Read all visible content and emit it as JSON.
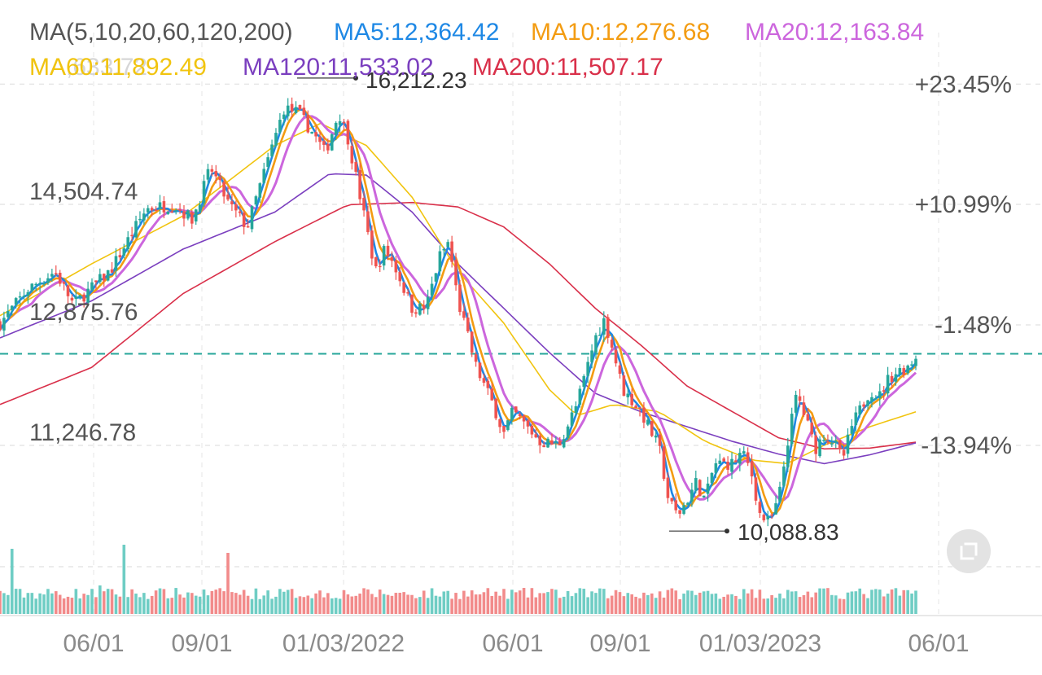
{
  "chart_data": {
    "type": "candlestick",
    "title": "",
    "legend_title": "MA(5,10,20,60,120,200)",
    "moving_averages": [
      {
        "name": "MA5",
        "label": "MA5:12,364.42",
        "value": 12364.42,
        "color": "#1e88e5"
      },
      {
        "name": "MA10",
        "label": "MA10:12,276.68",
        "value": 12276.68,
        "color": "#f39c12"
      },
      {
        "name": "MA20",
        "label": "MA20:12,163.84",
        "value": 12163.84,
        "color": "#cc66dd"
      },
      {
        "name": "MA60",
        "label": "MA60:11,892.49",
        "value": 11892.49,
        "color": "#f1c40f"
      },
      {
        "name": "MA120",
        "label": "MA120:11,533.02",
        "value": 11533.02,
        "color": "#7b3fbf"
      },
      {
        "name": "MA200",
        "label": "MA200:11,507.17",
        "value": 11507.17,
        "color": "#d9304a"
      }
    ],
    "overlay_glitch_text": "MA,633.72",
    "y_ticks": [
      {
        "value": 14504.74,
        "label": "14,504.74"
      },
      {
        "value": 12875.76,
        "label": "12,875.76"
      },
      {
        "value": 11246.78,
        "label": "11,246.78"
      }
    ],
    "pct_ticks": [
      {
        "value": 16130,
        "label": "+23.45%"
      },
      {
        "value": 14504.74,
        "label": "+10.99%"
      },
      {
        "value": 12875.76,
        "label": "-1.48%"
      },
      {
        "value": 11246.78,
        "label": "-13.94%"
      }
    ],
    "x_ticks": [
      "06/01",
      "09/01",
      "01/03/2022",
      "06/01",
      "09/01",
      "01/03/2023",
      "06/01"
    ],
    "high_marker": {
      "label": "16,212.23",
      "value": 16212.23
    },
    "low_marker": {
      "label": "10,088.83",
      "value": 10088.83
    },
    "current_price_line": 12485,
    "up_color": "#26a69a",
    "down_color": "#ef5350",
    "series_ma": {
      "MA200": [
        [
          0,
          11800
        ],
        [
          0.1,
          12300
        ],
        [
          0.2,
          13300
        ],
        [
          0.3,
          14000
        ],
        [
          0.38,
          14500
        ],
        [
          0.45,
          14530
        ],
        [
          0.5,
          14470
        ],
        [
          0.55,
          14200
        ],
        [
          0.6,
          13700
        ],
        [
          0.65,
          13100
        ],
        [
          0.7,
          12600
        ],
        [
          0.75,
          12050
        ],
        [
          0.8,
          11700
        ],
        [
          0.85,
          11350
        ],
        [
          0.9,
          11200
        ],
        [
          0.95,
          11210
        ],
        [
          1.0,
          11290
        ]
      ],
      "MA120": [
        [
          0,
          12700
        ],
        [
          0.1,
          13200
        ],
        [
          0.2,
          13900
        ],
        [
          0.3,
          14400
        ],
        [
          0.36,
          14920
        ],
        [
          0.4,
          14900
        ],
        [
          0.45,
          14400
        ],
        [
          0.5,
          13700
        ],
        [
          0.55,
          13100
        ],
        [
          0.6,
          12500
        ],
        [
          0.65,
          11950
        ],
        [
          0.7,
          11700
        ],
        [
          0.75,
          11500
        ],
        [
          0.8,
          11300
        ],
        [
          0.85,
          11130
        ],
        [
          0.9,
          11000
        ],
        [
          0.95,
          11120
        ],
        [
          1.0,
          11280
        ]
      ],
      "MA60": [
        [
          0,
          13000
        ],
        [
          0.1,
          13700
        ],
        [
          0.2,
          14350
        ],
        [
          0.3,
          15300
        ],
        [
          0.35,
          15600
        ],
        [
          0.4,
          15300
        ],
        [
          0.45,
          14600
        ],
        [
          0.5,
          13600
        ],
        [
          0.55,
          12900
        ],
        [
          0.6,
          12000
        ],
        [
          0.63,
          11650
        ],
        [
          0.67,
          11800
        ],
        [
          0.72,
          11700
        ],
        [
          0.77,
          11300
        ],
        [
          0.82,
          11050
        ],
        [
          0.86,
          11000
        ],
        [
          0.9,
          11250
        ],
        [
          0.95,
          11500
        ],
        [
          1.0,
          11700
        ]
      ]
    },
    "close_path": [
      [
        0,
        12900
      ],
      [
        0.03,
        13350
      ],
      [
        0.06,
        13600
      ],
      [
        0.08,
        13150
      ],
      [
        0.12,
        13600
      ],
      [
        0.16,
        14450
      ],
      [
        0.19,
        14500
      ],
      [
        0.21,
        14300
      ],
      [
        0.23,
        15000
      ],
      [
        0.25,
        14500
      ],
      [
        0.27,
        14200
      ],
      [
        0.29,
        15000
      ],
      [
        0.31,
        15800
      ],
      [
        0.325,
        15750
      ],
      [
        0.34,
        15500
      ],
      [
        0.355,
        15200
      ],
      [
        0.37,
        15750
      ],
      [
        0.38,
        15400
      ],
      [
        0.39,
        14800
      ],
      [
        0.4,
        14200
      ],
      [
        0.41,
        13600
      ],
      [
        0.42,
        13900
      ],
      [
        0.43,
        13700
      ],
      [
        0.45,
        13100
      ],
      [
        0.465,
        13100
      ],
      [
        0.48,
        13800
      ],
      [
        0.49,
        14000
      ],
      [
        0.5,
        13200
      ],
      [
        0.52,
        12300
      ],
      [
        0.54,
        11750
      ],
      [
        0.55,
        11400
      ],
      [
        0.56,
        11700
      ],
      [
        0.575,
        11500
      ],
      [
        0.59,
        11300
      ],
      [
        0.61,
        11250
      ],
      [
        0.63,
        11800
      ],
      [
        0.65,
        12700
      ],
      [
        0.66,
        12950
      ],
      [
        0.67,
        12500
      ],
      [
        0.68,
        12000
      ],
      [
        0.7,
        11700
      ],
      [
        0.72,
        11200
      ],
      [
        0.73,
        10500
      ],
      [
        0.74,
        10300
      ],
      [
        0.75,
        10500
      ],
      [
        0.76,
        10750
      ],
      [
        0.77,
        10500
      ],
      [
        0.78,
        11000
      ],
      [
        0.8,
        11000
      ],
      [
        0.81,
        11150
      ],
      [
        0.82,
        10900
      ],
      [
        0.83,
        10300
      ],
      [
        0.84,
        10200
      ],
      [
        0.85,
        10500
      ],
      [
        0.86,
        11300
      ],
      [
        0.87,
        11950
      ],
      [
        0.88,
        11600
      ],
      [
        0.89,
        11200
      ],
      [
        0.9,
        11400
      ],
      [
        0.91,
        11300
      ],
      [
        0.92,
        11050
      ],
      [
        0.93,
        11500
      ],
      [
        0.95,
        12000
      ],
      [
        0.96,
        11900
      ],
      [
        0.97,
        12150
      ],
      [
        0.98,
        12250
      ],
      [
        0.99,
        12300
      ],
      [
        1.0,
        12450
      ]
    ]
  },
  "ui": {
    "fullscreen_icon": "fullscreen-icon"
  }
}
